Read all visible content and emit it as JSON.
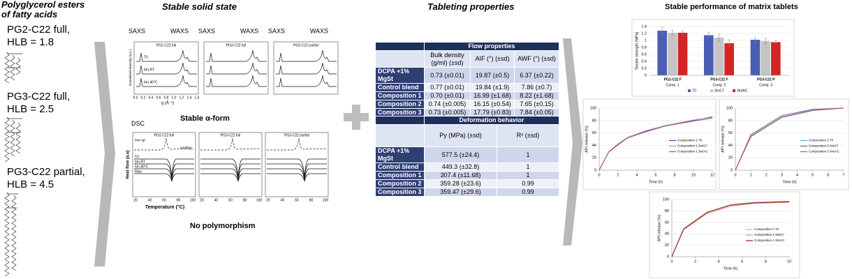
{
  "left": {
    "title": "Polyglycerol esters of fatty acids",
    "items": [
      {
        "name": "PG2-C22 full,",
        "hlb": "HLB = 1.8"
      },
      {
        "name": "PG3-C22 full,",
        "hlb": "HLB = 2.5"
      },
      {
        "name": "PG3-C22 partial,",
        "hlb": "HLB = 4.5"
      }
    ]
  },
  "solid_state": {
    "title": "Stable solid state",
    "scattering": {
      "saxs": "SAXS",
      "waxs": "WAXS",
      "panels": [
        "PG2-C22 full",
        "PG3-C22 full",
        "PG3-C22 partial"
      ],
      "ylabel": "Normalized intensity (a.u.)",
      "xlabel": "q (Å⁻¹)",
      "xtick_labels": [
        "0.0",
        "0.2",
        "0.4",
        "0.6",
        "0.8",
        "1.0",
        "1.2",
        "1.4",
        "1.6"
      ],
      "curve_labels": [
        "T0",
        "6m,RT",
        "6m,40°C"
      ]
    },
    "alpha_form": "Stable α-form",
    "dsc": {
      "label": "DSC",
      "panels": [
        "PG2-C22 full",
        "PG3-C22 full",
        "PG3-C22 partial"
      ],
      "ylabel": "Heat flow (a.u)",
      "xlabel": "Temperature (°C)",
      "xtick_labels": [
        "20",
        "40",
        "60",
        "80",
        "100"
      ],
      "curve_labels": [
        "exo up",
        "cooling",
        "T0",
        "6m,RT",
        "6m,40°C",
        "Raw"
      ]
    },
    "conclusion": "No polymorphism"
  },
  "tableting": {
    "title": "Tableting properties",
    "flow": {
      "heading": "Flow properties",
      "columns": [
        "Bulk density (g/ml) (±sd)",
        "AIF (°) (±sd)",
        "AWF (°) (±sd)"
      ],
      "rows": [
        [
          "DCPA +1% MgSt",
          "0.73 (±0.01)",
          "19.87 (±0.5)",
          "6.37 (±0.22)"
        ],
        [
          "Control blend",
          "0.77 (±0.01)",
          "19.84 (±1.9)",
          "7.86 (±0.7)"
        ],
        [
          "Composition 1",
          "0.70 (±0.01)",
          "16.99 (±1.68)",
          "8.22 (±1.68)"
        ],
        [
          "Composition 2",
          "0.74 (±0.005)",
          "16.15 (±0.54)",
          "7.65 (±0.15)"
        ],
        [
          "Composition 3",
          "0.73 (±0.005)",
          "17.79 (±0.83)",
          "7.84 (±0.05)"
        ]
      ]
    },
    "deformation": {
      "heading": "Deformation behavior",
      "columns": [
        "Py (MPa) (±sd)",
        "R² (±sd)"
      ],
      "rows": [
        [
          "DCPA +1% MgSt",
          "577.5 (±24.4)",
          "1"
        ],
        [
          "Control blend",
          "449.3 (±32.8)",
          "1"
        ],
        [
          "Composition 1",
          "307.4 (±11.68)",
          "1"
        ],
        [
          "Composition 2",
          "359.28 (±23.6)",
          "0.99"
        ],
        [
          "Composition 3",
          "359.47 (±29.6)",
          "0.99"
        ]
      ]
    }
  },
  "performance": {
    "title": "Stable performance of matrix tablets"
  },
  "chart_data": [
    {
      "type": "bar",
      "ylabel": "Tensile strength (MPa)",
      "categories": [
        "PG2-C22 F",
        "PG3-C22 F",
        "PG3-C22 P"
      ],
      "subcategories": [
        "Comp. 1",
        "Comp. 2",
        "Comp. 3"
      ],
      "series": [
        {
          "name": "T0",
          "color": "#4a5fb4",
          "values": [
            1.28,
            1.15,
            1.02
          ],
          "errors": [
            0.1,
            0.08,
            0.06
          ]
        },
        {
          "name": "3m/LT",
          "color": "#c4c4c4",
          "values": [
            1.22,
            1.08,
            0.98
          ],
          "errors": [
            0.08,
            0.1,
            0.08
          ]
        },
        {
          "name": "3m/AC",
          "color": "#d42424",
          "values": [
            1.22,
            0.92,
            0.95
          ],
          "errors": [
            0.06,
            0.1,
            0.05
          ]
        }
      ],
      "ylim": [
        0,
        1.4
      ],
      "yticks": [
        0,
        0.2,
        0.4,
        0.6,
        0.8,
        1,
        1.2,
        1.4
      ],
      "grid": true,
      "legend": "bottom"
    },
    {
      "type": "line",
      "ylabel": "API release (%)",
      "xlabel": "Time (h)",
      "x": [
        0,
        1,
        2,
        3,
        5,
        7,
        10,
        12
      ],
      "series": [
        {
          "name": "Composition 1 T0",
          "color": "#7030a0",
          "values": [
            0,
            29,
            41,
            52,
            63,
            71,
            80,
            86
          ]
        },
        {
          "name": "Composition 1 3m/LT",
          "color": "#8fb4e3",
          "values": [
            0,
            30,
            42,
            53,
            64,
            72,
            81,
            85
          ]
        },
        {
          "name": "Composition 1 3m/AC",
          "color": "#c0504d",
          "values": [
            0,
            29,
            42,
            52,
            62,
            71,
            79,
            84
          ]
        }
      ],
      "xlim": [
        0,
        12
      ],
      "xticks": [
        0,
        2,
        4,
        6,
        8,
        10,
        12
      ],
      "ylim": [
        0,
        100
      ],
      "yticks": [
        0,
        20,
        40,
        60,
        80,
        100
      ],
      "grid": true,
      "legend": "right"
    },
    {
      "type": "line",
      "ylabel": "API release (%)",
      "xlabel": "Time (h)",
      "x": [
        0,
        1,
        3,
        5,
        7
      ],
      "series": [
        {
          "name": "Composition 3 T0",
          "color": "#4bacc6",
          "values": [
            0,
            55,
            86,
            97,
            100
          ]
        },
        {
          "name": "Composition 3 3m/LT",
          "color": "#8064a2",
          "values": [
            0,
            57,
            88,
            98,
            100
          ]
        },
        {
          "name": "Composition 3 3m/AC",
          "color": "#c0504d",
          "values": [
            0,
            54,
            85,
            96,
            100
          ]
        }
      ],
      "xlim": [
        0,
        7
      ],
      "xticks": [
        0,
        1,
        2,
        3,
        4,
        5,
        6,
        7
      ],
      "ylim": [
        0,
        100
      ],
      "yticks": [
        0,
        20,
        40,
        60,
        80,
        100
      ],
      "grid": true,
      "legend": "right"
    },
    {
      "type": "line",
      "ylabel": "API release (%)",
      "xlabel": "Time (h)",
      "x": [
        0,
        1,
        3,
        5,
        7,
        10
      ],
      "series": [
        {
          "name": "Composition 2 T0",
          "color": "#f4a582",
          "values": [
            0,
            47,
            75,
            88,
            93,
            95
          ]
        },
        {
          "name": "Composition 2 3m/LT",
          "color": "#8ea9c1",
          "values": [
            0,
            49,
            78,
            91,
            95,
            97
          ]
        },
        {
          "name": "Composition 2 3m/AC",
          "color": "#8b1a1a",
          "values": [
            0,
            48,
            77,
            90,
            94,
            96
          ]
        }
      ],
      "xlim": [
        0,
        10
      ],
      "xticks": [
        0,
        2,
        4,
        6,
        8,
        10
      ],
      "ylim": [
        0,
        100
      ],
      "yticks": [
        0,
        20,
        40,
        60,
        80,
        100
      ],
      "grid": true,
      "legend": "right"
    }
  ]
}
